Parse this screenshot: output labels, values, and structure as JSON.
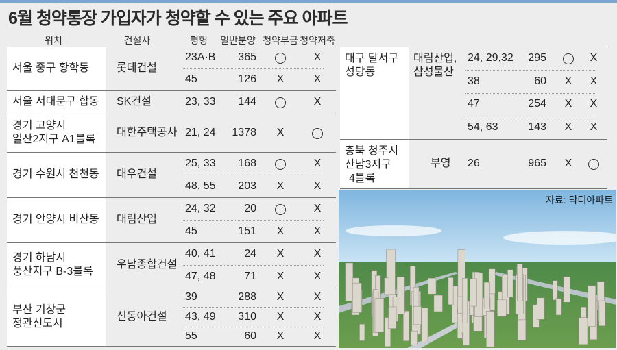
{
  "title": "6월 청약통장 가입자가 청약할 수 있는 주요 아파트",
  "headers": [
    "위치",
    "건설사",
    "평형",
    "일반분양",
    "청약부금",
    "청약저축"
  ],
  "marks": {
    "yes": "○",
    "no": "X"
  },
  "left_groups": [
    {
      "location": [
        "서울 중구 황학동"
      ],
      "company": [
        "롯데건설"
      ],
      "rows": [
        {
          "size": "23A·B",
          "units": "365",
          "bugeum": "○",
          "jeochuk": "X"
        },
        {
          "size": "45",
          "units": "126",
          "bugeum": "X",
          "jeochuk": "X"
        }
      ]
    },
    {
      "location": [
        "서울 서대문구 합동"
      ],
      "company": [
        "SK건설"
      ],
      "rows": [
        {
          "size": "23, 33",
          "units": "144",
          "bugeum": "○",
          "jeochuk": "X"
        }
      ]
    },
    {
      "location": [
        "경기 고양시",
        "일산2지구 A1블록"
      ],
      "company": [
        "대한주택공사"
      ],
      "rows": [
        {
          "size": "21, 24",
          "units": "1378",
          "bugeum": "X",
          "jeochuk": "○"
        }
      ]
    },
    {
      "location": [
        "경기 수원시 천천동"
      ],
      "company": [
        "대우건설"
      ],
      "rows": [
        {
          "size": "25, 33",
          "units": "168",
          "bugeum": "○",
          "jeochuk": "X"
        },
        {
          "size": "48, 55",
          "units": "203",
          "bugeum": "X",
          "jeochuk": "X"
        }
      ]
    },
    {
      "location": [
        "경기 안양시 비산동"
      ],
      "company": [
        "대림산업"
      ],
      "rows": [
        {
          "size": "24, 32",
          "units": "20",
          "bugeum": "○",
          "jeochuk": "X"
        },
        {
          "size": "45",
          "units": "151",
          "bugeum": "X",
          "jeochuk": "X"
        }
      ]
    },
    {
      "location": [
        "경기 하남시",
        "풍산지구 B-3블록"
      ],
      "company": [
        "우남종합건설"
      ],
      "rows": [
        {
          "size": "40, 41",
          "units": "24",
          "bugeum": "X",
          "jeochuk": "X"
        },
        {
          "size": "47, 48",
          "units": "71",
          "bugeum": "X",
          "jeochuk": "X"
        }
      ]
    },
    {
      "location": [
        "부산 기장군",
        "정관신도시"
      ],
      "company": [
        "신동아건설"
      ],
      "rows": [
        {
          "size": "39",
          "units": "288",
          "bugeum": "X",
          "jeochuk": "X"
        },
        {
          "size": "43, 49",
          "units": "310",
          "bugeum": "X",
          "jeochuk": "X"
        },
        {
          "size": "55",
          "units": "60",
          "bugeum": "X",
          "jeochuk": "X"
        }
      ]
    }
  ],
  "right_groups": [
    {
      "location": [
        "대구 달서구",
        "성당동"
      ],
      "company": [
        "대림산업,",
        "삼성물산"
      ],
      "rows": [
        {
          "size": "24, 29,32",
          "units": "295",
          "bugeum": "○",
          "jeochuk": "X"
        },
        {
          "size": "38",
          "units": "60",
          "bugeum": "X",
          "jeochuk": "X"
        },
        {
          "size": "47",
          "units": "254",
          "bugeum": "X",
          "jeochuk": "X"
        },
        {
          "size": "54, 63",
          "units": "143",
          "bugeum": "X",
          "jeochuk": "X"
        }
      ]
    },
    {
      "location": [
        "충북 청주시",
        "산남3지구",
        "4블록"
      ],
      "company": [
        "부영"
      ],
      "rows": [
        {
          "size": "26",
          "units": "965",
          "bugeum": "X",
          "jeochuk": "○"
        }
      ]
    }
  ],
  "source": "자료: 닥터아파트",
  "photo": {
    "kind": "apartment-complex-aerial-rendering"
  }
}
